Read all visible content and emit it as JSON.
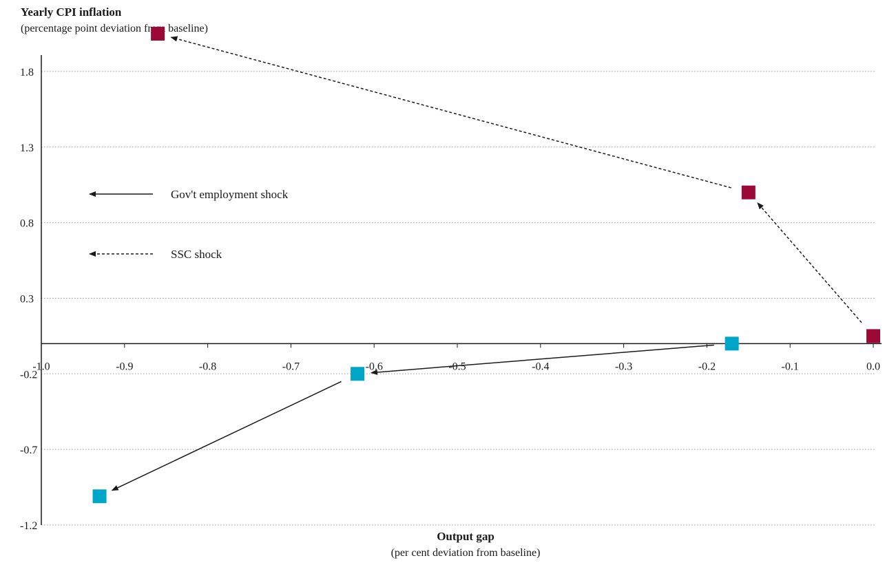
{
  "title": "Yearly CPI inflation",
  "subtitle": "(percentage point deviation from baseline)",
  "x_title": "Output gap",
  "x_subtitle": "(per cent deviation from baseline)",
  "colors": {
    "gov_employment": "#00a6c8",
    "ssc": "#9b0a36",
    "axis": "#1a1a1a",
    "grid": "#9a9a9a"
  },
  "chart_data": {
    "type": "scatter",
    "x_axis": {
      "range": [
        -1.0,
        0.0
      ],
      "ticks": [
        -1.0,
        -0.9,
        -0.8,
        -0.7,
        -0.6,
        -0.5,
        -0.4,
        -0.3,
        -0.2,
        -0.1,
        0.0
      ],
      "tick_labels": [
        "-1.0",
        "-0.9",
        "-0.8",
        "-0.7",
        "-0.6",
        "-0.5",
        "-0.4",
        "-0.3",
        "-0.2",
        "-0.1",
        "0.0"
      ]
    },
    "y_axis": {
      "range": [
        -1.2,
        2.1
      ],
      "ticks": [
        -1.2,
        -0.7,
        -0.2,
        0.3,
        0.8,
        1.3,
        1.8
      ],
      "tick_labels": [
        "-1.2",
        "-0.7",
        "-0.2",
        "0.3",
        "0.8",
        "1.3",
        "1.8"
      ]
    },
    "grid": "horizontal dotted",
    "legend_position": "left",
    "series": [
      {
        "name": "Gov't employment shock",
        "line_style": "solid",
        "color_key": "gov_employment",
        "points": [
          {
            "x": -0.17,
            "y": 0.0
          },
          {
            "x": -0.62,
            "y": -0.2
          },
          {
            "x": -0.93,
            "y": -1.01
          }
        ]
      },
      {
        "name": "SSC shock",
        "line_style": "dashed",
        "color_key": "ssc",
        "points": [
          {
            "x": 0.0,
            "y": 0.05
          },
          {
            "x": -0.15,
            "y": 1.0
          },
          {
            "x": -0.86,
            "y": 2.05
          }
        ]
      }
    ]
  }
}
